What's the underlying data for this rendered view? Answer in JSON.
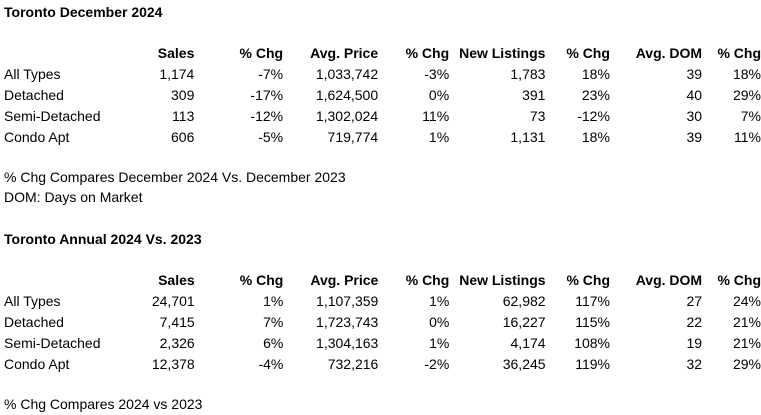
{
  "dec": {
    "title": "Toronto December 2024",
    "headers": [
      "",
      "Sales",
      "% Chg",
      "Avg. Price",
      "% Chg",
      "New Listings",
      "% Chg",
      "Avg. DOM",
      "% Chg"
    ],
    "rows": [
      [
        "All Types",
        "1,174",
        "-7%",
        "1,033,742",
        "-3%",
        "1,783",
        "18%",
        "39",
        "18%"
      ],
      [
        "Detached",
        "309",
        "-17%",
        "1,624,500",
        "0%",
        "391",
        "23%",
        "40",
        "29%"
      ],
      [
        "Semi-Detached",
        "113",
        "-12%",
        "1,302,024",
        "11%",
        "73",
        "-12%",
        "30",
        "7%"
      ],
      [
        "Condo Apt",
        "606",
        "-5%",
        "719,774",
        "1%",
        "1,131",
        "18%",
        "39",
        "11%"
      ]
    ],
    "note1": "% Chg Compares December 2024 Vs. December 2023",
    "note2": "DOM:  Days on Market"
  },
  "annual": {
    "title": "Toronto Annual 2024 Vs. 2023",
    "headers": [
      "",
      "Sales",
      "% Chg",
      "Avg. Price",
      "% Chg",
      "New Listings",
      "% Chg",
      "Avg. DOM",
      "% Chg"
    ],
    "rows": [
      [
        "All Types",
        "24,701",
        "1%",
        "1,107,359",
        "1%",
        "62,982",
        "117%",
        "27",
        "24%"
      ],
      [
        "Detached",
        "7,415",
        "7%",
        "1,723,743",
        "0%",
        "16,227",
        "115%",
        "22",
        "21%"
      ],
      [
        "Semi-Detached",
        "2,326",
        "6%",
        "1,304,163",
        "1%",
        "4,174",
        "108%",
        "19",
        "21%"
      ],
      [
        "Condo Apt",
        "12,378",
        "-4%",
        "732,216",
        "-2%",
        "36,245",
        "119%",
        "32",
        "29%"
      ]
    ],
    "note1": "% Chg Compares 2024 vs 2023"
  }
}
